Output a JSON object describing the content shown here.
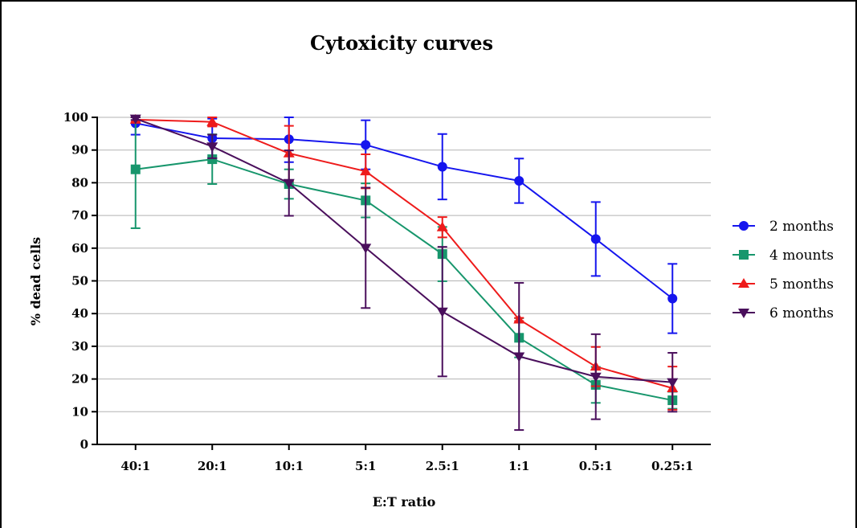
{
  "chart_data": {
    "type": "line",
    "title": "Cytoxicity curves",
    "xlabel": "E:T ratio",
    "ylabel": "% dead cells",
    "categories": [
      "40:1",
      "20:1",
      "10:1",
      "5:1",
      "2.5:1",
      "1:1",
      "0.5:1",
      "0.25:1"
    ],
    "ylim": [
      0,
      100
    ],
    "yticks": [
      0,
      10,
      20,
      30,
      40,
      50,
      60,
      70,
      80,
      90,
      100
    ],
    "grid": true,
    "legend_position": "right",
    "series": [
      {
        "name": "2 months",
        "color": "#1515ee",
        "marker": "circle",
        "values": [
          98.2,
          93.6,
          93.3,
          91.6,
          84.9,
          80.6,
          62.8,
          44.6
        ],
        "error": [
          3.5,
          6.0,
          7.0,
          7.5,
          10.0,
          6.8,
          11.3,
          10.6
        ]
      },
      {
        "name": "4 mounts",
        "color": "#17966c",
        "marker": "square",
        "values": [
          84.1,
          87.2,
          79.6,
          74.6,
          58.2,
          32.6,
          18.2,
          13.5
        ],
        "error": [
          18.0,
          7.6,
          4.5,
          5.2,
          8.3,
          6.0,
          5.5,
          2.6
        ]
      },
      {
        "name": "5 months",
        "color": "#ee1b1b",
        "marker": "triangle-up",
        "values": [
          99.3,
          98.6,
          89.0,
          83.5,
          66.4,
          38.2,
          23.8,
          17.2
        ],
        "error": [
          0.7,
          1.4,
          8.4,
          5.2,
          3.1,
          0.5,
          6.0,
          6.6
        ]
      },
      {
        "name": "6 months",
        "color": "#4a0f5c",
        "marker": "triangle-down",
        "values": [
          99.6,
          91.1,
          79.9,
          60.1,
          40.6,
          26.9,
          20.7,
          19.0
        ],
        "error": [
          0.4,
          3.6,
          10.0,
          18.4,
          19.8,
          22.5,
          13.0,
          9.0
        ]
      }
    ]
  }
}
